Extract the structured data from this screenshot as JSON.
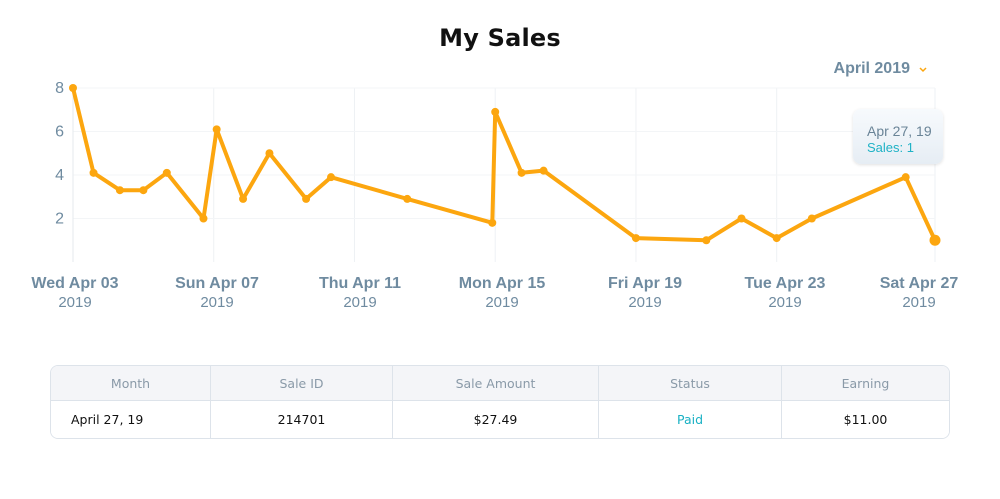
{
  "title": "My Sales",
  "month_selector": {
    "label": "April 2019"
  },
  "colors": {
    "line": "#fca60f",
    "axis_text": "#6f8ba0",
    "tooltip_value": "#1fb2c6",
    "status_paid": "#19b1c4"
  },
  "tooltip": {
    "date": "Apr 27, 19",
    "value": "Sales: 1"
  },
  "chart_data": {
    "type": "line",
    "title": "My Sales",
    "ylim": [
      0,
      8
    ],
    "yticks": [
      2,
      4,
      6,
      8
    ],
    "grid": true,
    "x_tick_labels": [
      {
        "day": "Wed Apr 03",
        "year": "2019"
      },
      {
        "day": "Sun Apr 07",
        "year": "2019"
      },
      {
        "day": "Thu Apr 11",
        "year": "2019"
      },
      {
        "day": "Mon Apr 15",
        "year": "2019"
      },
      {
        "day": "Fri Apr 19",
        "year": "2019"
      },
      {
        "day": "Tue Apr 23",
        "year": "2019"
      },
      {
        "day": "Sat Apr 27",
        "year": "2019"
      }
    ],
    "series": [
      {
        "points": [
          {
            "x": "2019-04-03",
            "y": 8.0
          },
          {
            "x": "2019-04-03T14:00",
            "y": 4.1
          },
          {
            "x": "2019-04-04T08:00",
            "y": 3.3
          },
          {
            "x": "2019-04-05T00:00",
            "y": 3.3
          },
          {
            "x": "2019-04-05T16:00",
            "y": 4.1
          },
          {
            "x": "2019-04-06T17:00",
            "y": 2.0
          },
          {
            "x": "2019-04-07T02:00",
            "y": 6.1
          },
          {
            "x": "2019-04-07T20:00",
            "y": 2.9
          },
          {
            "x": "2019-04-08T14:00",
            "y": 5.0
          },
          {
            "x": "2019-04-09T15:00",
            "y": 2.9
          },
          {
            "x": "2019-04-10T08:00",
            "y": 3.9
          },
          {
            "x": "2019-04-12T12:00",
            "y": 2.9
          },
          {
            "x": "2019-04-14T22:00",
            "y": 1.8
          },
          {
            "x": "2019-04-15T00:00",
            "y": 6.9
          },
          {
            "x": "2019-04-15T18:00",
            "y": 4.1
          },
          {
            "x": "2019-04-16T09:00",
            "y": 4.2
          },
          {
            "x": "2019-04-19T00:00",
            "y": 1.1
          },
          {
            "x": "2019-04-21T00:00",
            "y": 1.0
          },
          {
            "x": "2019-04-22T00:00",
            "y": 2.0
          },
          {
            "x": "2019-04-23T00:00",
            "y": 1.1
          },
          {
            "x": "2019-04-24T00:00",
            "y": 2.0
          },
          {
            "x": "2019-04-26T16:00",
            "y": 3.9
          },
          {
            "x": "2019-04-27T12:00",
            "y": 1.0
          }
        ]
      }
    ]
  },
  "table": {
    "headers": [
      "Month",
      "Sale ID",
      "Sale Amount",
      "Status",
      "Earning"
    ],
    "rows": [
      [
        "April 27, 19",
        "214701",
        "$27.49",
        "Paid",
        "$11.00"
      ]
    ]
  }
}
